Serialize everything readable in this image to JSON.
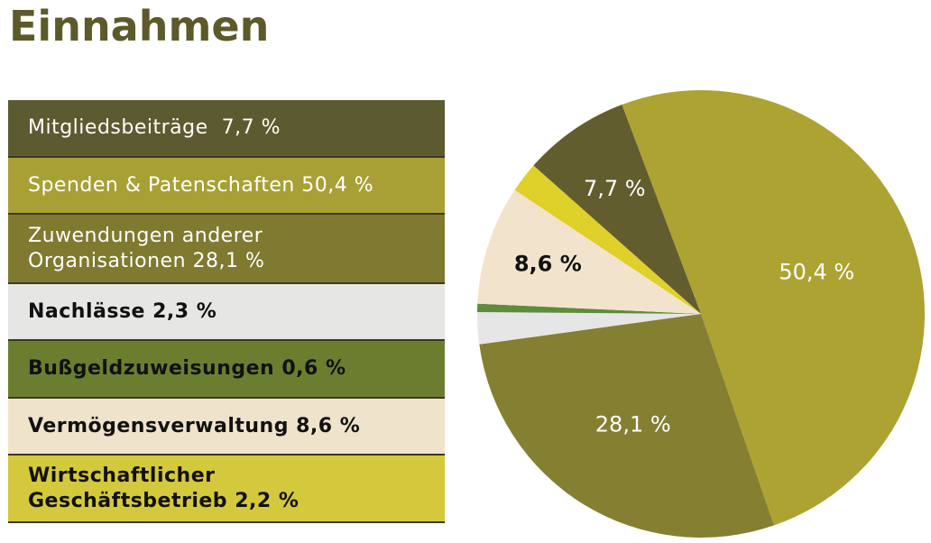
{
  "title": "Einnahmen",
  "chart_data": {
    "type": "pie",
    "title": "Einnahmen",
    "slices": [
      {
        "name": "Spenden & Patenschaften",
        "value": 50.4,
        "legend_label": "Spenden & Patenschaften 50,4 %",
        "pie_label": "50,4 %",
        "legend_color": "#a8a035",
        "color": "#ada332",
        "legend_text_color": "#ffffff",
        "label_color": "#ffffff"
      },
      {
        "name": "Zuwendungen anderer Organisationen",
        "value": 28.1,
        "legend_label": "Zuwendungen anderer Organisationen 28,1 %",
        "pie_label": "28,1 %",
        "legend_color": "#7f7a30",
        "color": "#857f32",
        "legend_text_color": "#ffffff",
        "label_color": "#ffffff"
      },
      {
        "name": "Nachlässe",
        "value": 2.3,
        "legend_label": "Nachlässe 2,3 %",
        "pie_label": "",
        "legend_color": "#e6e6e4",
        "color": "#e6e6e6",
        "legend_text_color": "#111111"
      },
      {
        "name": "Bußgeldzuweisungen",
        "value": 0.6,
        "legend_label": "Bußgeldzuweisungen 0,6 %",
        "pie_label": "",
        "legend_color": "#6b7e30",
        "color": "#5e8c3a",
        "legend_text_color": "#111111"
      },
      {
        "name": "Vermögensverwaltung",
        "value": 8.6,
        "legend_label": "Vermögensverwaltung 8,6 %",
        "pie_label": "8,6 %",
        "legend_color": "#f0e3cb",
        "color": "#f2e3cc",
        "legend_text_color": "#111111",
        "label_color": "#111111"
      },
      {
        "name": "Wirtschaftlicher Geschäftsbetrieb",
        "value": 2.2,
        "legend_label": "Wirtschaftlicher Geschäftsbetrieb 2,2 %",
        "pie_label": "",
        "legend_color": "#d4c93c",
        "color": "#e0d02a",
        "legend_text_color": "#111111"
      },
      {
        "name": "Mitgliedsbeiträge",
        "value": 7.7,
        "legend_label": "Mitgliedsbeiträge  7,7 %",
        "pie_label": "7,7 %",
        "legend_color": "#5c5a30",
        "color": "#625d2e",
        "legend_text_color": "#ffffff",
        "label_color": "#ffffff"
      }
    ],
    "legend_order": [
      "Mitgliedsbeiträge  7,7 %",
      "Spenden & Patenschaften 50,4 %",
      "Zuwendungen anderer Organisationen 28,1 %",
      "Nachlässe 2,3 %",
      "Bußgeldzuweisungen 0,6 %",
      "Vermögensverwaltung 8,6 %",
      "Wirtschaftlicher Geschäftsbetrieb 2,2 %"
    ],
    "legend_placement": "left"
  }
}
